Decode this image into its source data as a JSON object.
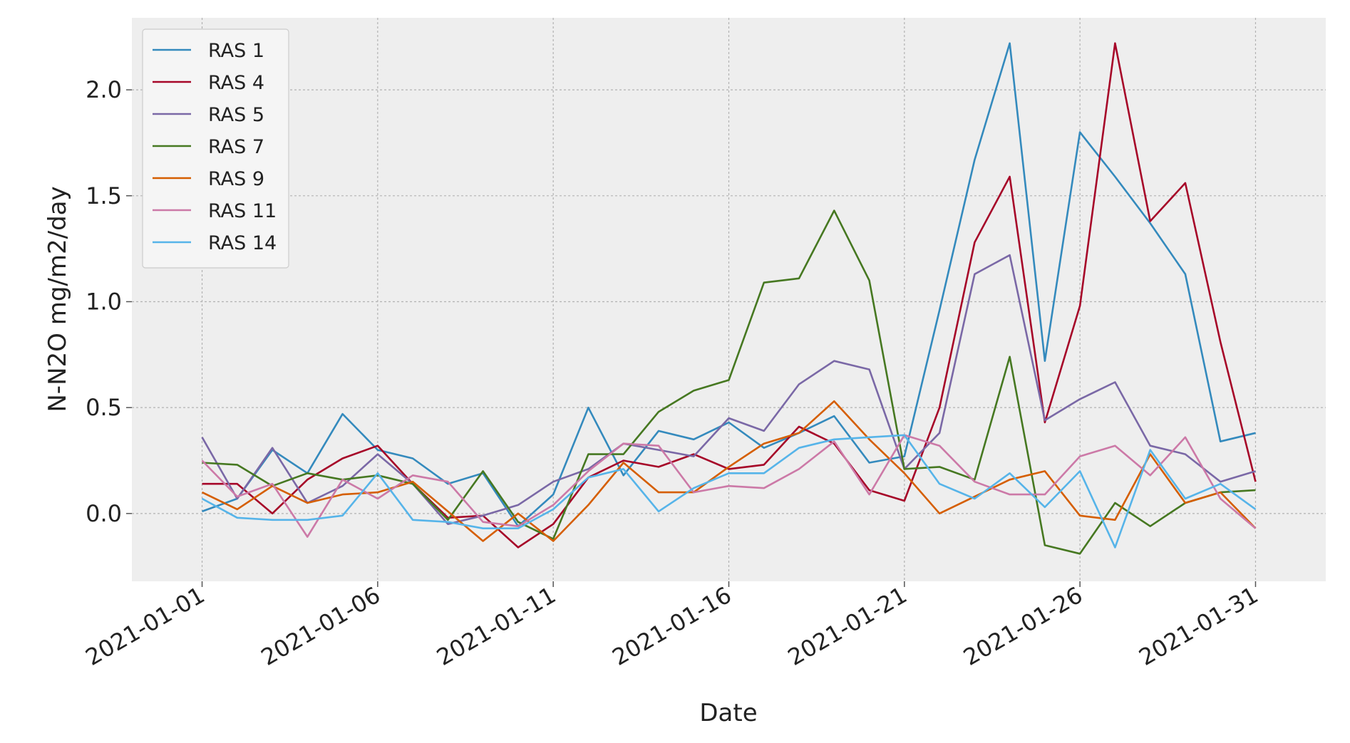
{
  "chart_data": {
    "type": "line",
    "title": "",
    "xlabel": "Date",
    "ylabel": "N-N2O mg/m2/day",
    "x": [
      "2021-01-01",
      "2021-01-02",
      "2021-01-03",
      "2021-01-04",
      "2021-01-05",
      "2021-01-06",
      "2021-01-07",
      "2021-01-08",
      "2021-01-09",
      "2021-01-10",
      "2021-01-11",
      "2021-01-12",
      "2021-01-13",
      "2021-01-14",
      "2021-01-15",
      "2021-01-16",
      "2021-01-17",
      "2021-01-18",
      "2021-01-19",
      "2021-01-20",
      "2021-01-21",
      "2021-01-22",
      "2021-01-23",
      "2021-01-24",
      "2021-01-25",
      "2021-01-26",
      "2021-01-27",
      "2021-01-28",
      "2021-01-29",
      "2021-01-30",
      "2021-01-31"
    ],
    "x_ticks": [
      "2021-01-01",
      "2021-01-06",
      "2021-01-11",
      "2021-01-16",
      "2021-01-21",
      "2021-01-26",
      "2021-01-31"
    ],
    "y_ticks": [
      0.0,
      0.5,
      1.0,
      1.5,
      2.0
    ],
    "y_tick_labels": [
      "0.0",
      "0.5",
      "1.0",
      "1.5",
      "2.0"
    ],
    "xlim": [
      "2020-12-30",
      "2021-02-02"
    ],
    "ylim": [
      -0.32,
      2.34
    ],
    "grid": true,
    "legend_position": "top-left",
    "series": [
      {
        "name": "RAS 1",
        "color": "#348abd",
        "values": [
          0.01,
          0.07,
          0.3,
          0.19,
          0.47,
          0.3,
          0.26,
          0.14,
          0.19,
          -0.06,
          0.09,
          0.5,
          0.18,
          0.39,
          0.35,
          0.43,
          0.31,
          0.38,
          0.46,
          0.24,
          0.27,
          0.96,
          1.67,
          2.22,
          0.72,
          1.8,
          1.59,
          1.37,
          1.13,
          0.34,
          0.38
        ]
      },
      {
        "name": "RAS 4",
        "color": "#a60628",
        "values": [
          0.14,
          0.14,
          0.0,
          0.16,
          0.26,
          0.32,
          0.14,
          -0.02,
          -0.01,
          -0.16,
          -0.05,
          0.17,
          0.25,
          0.22,
          0.28,
          0.21,
          0.23,
          0.41,
          0.33,
          0.11,
          0.06,
          0.5,
          1.28,
          1.59,
          0.43,
          0.98,
          2.22,
          1.38,
          1.56,
          0.81,
          0.15
        ]
      },
      {
        "name": "RAS 5",
        "color": "#7a68a6",
        "values": [
          0.36,
          0.07,
          0.31,
          0.05,
          0.13,
          0.28,
          0.14,
          -0.05,
          -0.01,
          0.04,
          0.15,
          0.21,
          0.33,
          0.3,
          0.27,
          0.45,
          0.39,
          0.61,
          0.72,
          0.68,
          0.21,
          0.38,
          1.13,
          1.22,
          0.44,
          0.54,
          0.62,
          0.32,
          0.28,
          0.15,
          0.2
        ]
      },
      {
        "name": "RAS 7",
        "color": "#467821",
        "values": [
          0.24,
          0.23,
          0.13,
          0.19,
          0.16,
          0.18,
          0.14,
          -0.03,
          0.2,
          -0.04,
          -0.12,
          0.28,
          0.28,
          0.48,
          0.58,
          0.63,
          1.09,
          1.11,
          1.43,
          1.1,
          0.21,
          0.22,
          0.16,
          0.74,
          -0.15,
          -0.19,
          0.05,
          -0.06,
          0.05,
          0.1,
          0.11
        ]
      },
      {
        "name": "RAS 9",
        "color": "#d55e00",
        "values": [
          0.1,
          0.02,
          0.13,
          0.05,
          0.09,
          0.1,
          0.15,
          0.01,
          -0.13,
          0.0,
          -0.13,
          0.04,
          0.24,
          0.1,
          0.1,
          0.22,
          0.33,
          0.38,
          0.53,
          0.35,
          0.19,
          0.0,
          0.08,
          0.16,
          0.2,
          -0.01,
          -0.03,
          0.28,
          0.05,
          0.1,
          -0.07
        ]
      },
      {
        "name": "RAS 11",
        "color": "#cc79a7",
        "values": [
          0.25,
          0.08,
          0.14,
          -0.11,
          0.16,
          0.07,
          0.18,
          0.15,
          -0.04,
          -0.06,
          0.04,
          0.2,
          0.33,
          0.32,
          0.1,
          0.13,
          0.12,
          0.21,
          0.34,
          0.09,
          0.37,
          0.32,
          0.15,
          0.09,
          0.09,
          0.27,
          0.32,
          0.18,
          0.36,
          0.07,
          -0.07
        ]
      },
      {
        "name": "RAS 14",
        "color": "#56b4e9",
        "values": [
          0.07,
          -0.02,
          -0.03,
          -0.03,
          -0.01,
          0.19,
          -0.03,
          -0.04,
          -0.07,
          -0.07,
          0.02,
          0.17,
          0.21,
          0.01,
          0.12,
          0.19,
          0.19,
          0.31,
          0.35,
          0.36,
          0.37,
          0.14,
          0.07,
          0.19,
          0.03,
          0.2,
          -0.16,
          0.3,
          0.07,
          0.14,
          0.02
        ]
      }
    ]
  }
}
